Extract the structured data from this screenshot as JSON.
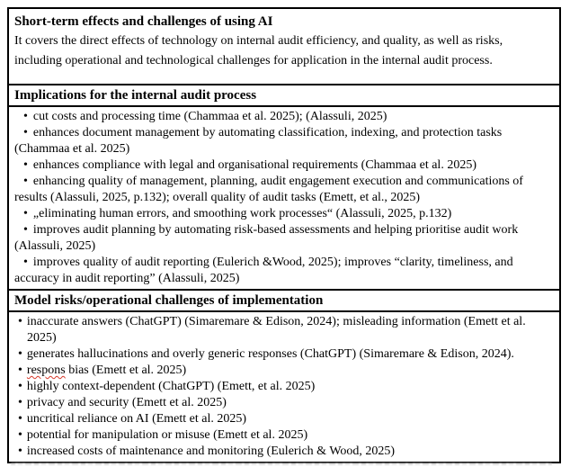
{
  "document": {
    "header": {
      "title": "Short-term effects and challenges of using AI",
      "description": "It covers the direct effects of technology on internal audit efficiency, and quality, as well as risks, including operational and technological challenges for application in the internal audit process."
    },
    "sections": [
      {
        "heading": "Implications for the internal audit process",
        "items": [
          "cut costs and processing time (Chammaa et al. 2025); (Alassuli, 2025)",
          "enhances document management by automating classification, indexing, and protection tasks (Chammaa et al. 2025)",
          "enhances compliance with legal and organisational requirements (Chammaa et al. 2025)",
          "enhancing quality of management, planning, audit engagement execution and communications of results (Alassuli, 2025, p.132); overall quality of audit tasks (Emett, et al., 2025)",
          "„eliminating human errors, and smoothing work processes“ (Alassuli, 2025, p.132)",
          "improves audit planning by automating risk-based assessments and helping prioritise audit work (Alassuli, 2025)",
          "improves quality of audit reporting (Eulerich &Wood, 2025); improves “clarity, timeliness, and accuracy in audit reporting” (Alassuli, 2025)"
        ]
      },
      {
        "heading": "Model risks/operational challenges of implementation",
        "items": [
          "inaccurate answers (ChatGPT) (Simaremare & Edison, 2024); misleading information (Emett et al. 2025)",
          "generates hallucinations and overly generic responses (ChatGPT) (Simaremare & Edison, 2024).",
          {
            "misspelled": "respons",
            "text": "bias (Emett et al. 2025)"
          },
          "highly context-dependent (ChatGPT) (Emett, et al. 2025)",
          "privacy and security (Emett et al. 2025)",
          "uncritical reliance on AI (Emett et al. 2025)",
          "potential for manipulation or misuse (Emett et al. 2025)",
          "increased costs of maintenance and monitoring (Eulerich & Wood, 2025)"
        ]
      }
    ],
    "colors": {
      "border": "#000000",
      "background": "#ffffff",
      "spellcheck_underline": "#d7382a"
    }
  }
}
